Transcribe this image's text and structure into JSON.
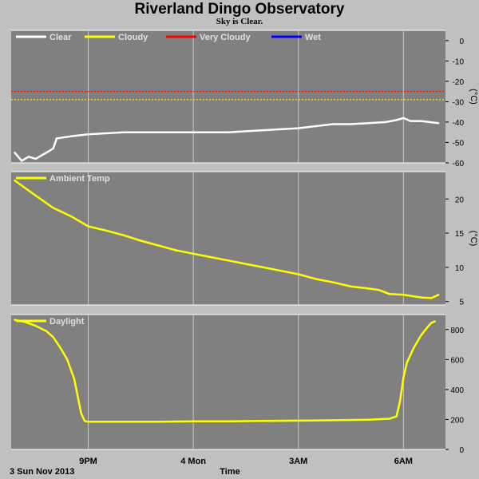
{
  "title": "Riverland Dingo Observatory",
  "subtitle": "Sky is Clear.",
  "date_label": "3 Sun Nov 2013",
  "time_label": "Time",
  "colors": {
    "background": "#c0c0c0",
    "panel": "#808080",
    "grid": "#c8c8c8",
    "clear": "#ffffff",
    "cloudy": "#ffff00",
    "very_cloudy": "#ff0000",
    "wet": "#0000ff",
    "trace": "#ffff00"
  },
  "chart_data": [
    {
      "type": "line",
      "legend": [
        "Clear",
        "Cloudy",
        "Very Cloudy",
        "Wet"
      ],
      "ylabel": "(°C)",
      "ylim": [
        -60,
        5
      ],
      "yticks": [
        0,
        -10,
        -20,
        -30,
        -40,
        -50,
        -60
      ],
      "xlim": [
        18.8,
        31.2
      ],
      "xticks": [
        {
          "x": 21,
          "label": "9PM"
        },
        {
          "x": 24,
          "label": "4 Mon"
        },
        {
          "x": 27,
          "label": "3AM"
        },
        {
          "x": 30,
          "label": "6AM"
        }
      ],
      "thresholds": [
        {
          "name": "Very Cloudy",
          "value": -25
        },
        {
          "name": "Cloudy",
          "value": -29
        }
      ],
      "series": [
        {
          "name": "Clear",
          "x": [
            18.9,
            19.1,
            19.3,
            19.5,
            19.7,
            19.9,
            20.0,
            20.1,
            20.5,
            21.0,
            21.5,
            22.0,
            22.5,
            23.0,
            23.5,
            24.0,
            24.5,
            25.0,
            25.5,
            26.0,
            26.5,
            27.0,
            27.5,
            28.0,
            28.5,
            29.0,
            29.5,
            29.8,
            30.0,
            30.2,
            30.5,
            31.0
          ],
          "y": [
            -55,
            -59,
            -57,
            -58,
            -56,
            -54,
            -53,
            -48,
            -47,
            -46,
            -45.5,
            -45,
            -45,
            -45,
            -45,
            -45,
            -45,
            -45,
            -44.5,
            -44,
            -43.5,
            -43,
            -42,
            -41,
            -41,
            -40.5,
            -40,
            -39,
            -38,
            -39.5,
            -39.5,
            -40.5
          ]
        }
      ]
    },
    {
      "type": "line",
      "legend": [
        "Ambient Temp"
      ],
      "ylabel": "(°C)",
      "ylim": [
        4.5,
        24
      ],
      "yticks": [
        20,
        15,
        10,
        5
      ],
      "xlim": [
        18.8,
        31.2
      ],
      "xticks": [
        {
          "x": 21,
          "label": "9PM"
        },
        {
          "x": 24,
          "label": "4 Mon"
        },
        {
          "x": 27,
          "label": "3AM"
        },
        {
          "x": 30,
          "label": "6AM"
        }
      ],
      "series": [
        {
          "name": "Ambient Temp",
          "x": [
            18.9,
            19.5,
            20.0,
            20.5,
            21.0,
            21.5,
            22.0,
            22.5,
            23.0,
            23.5,
            24.0,
            24.5,
            25.0,
            25.5,
            26.0,
            26.5,
            27.0,
            27.5,
            28.0,
            28.5,
            29.0,
            29.3,
            29.6,
            30.0,
            30.5,
            30.8,
            31.0
          ],
          "y": [
            22.7,
            20.5,
            18.7,
            17.5,
            16.0,
            15.4,
            14.7,
            13.9,
            13.2,
            12.5,
            12.0,
            11.5,
            11.0,
            10.5,
            10.0,
            9.5,
            9.0,
            8.3,
            7.8,
            7.2,
            6.9,
            6.7,
            6.1,
            6.0,
            5.6,
            5.5,
            6.0
          ]
        }
      ]
    },
    {
      "type": "line",
      "legend": [
        "Daylight"
      ],
      "ylabel": "",
      "ylim": [
        0,
        900
      ],
      "yticks": [
        800,
        600,
        400,
        200,
        0
      ],
      "xlim": [
        18.8,
        31.2
      ],
      "xticks": [
        {
          "x": 21,
          "label": "9PM"
        },
        {
          "x": 24,
          "label": "4 Mon"
        },
        {
          "x": 27,
          "label": "3AM"
        },
        {
          "x": 30,
          "label": "6AM"
        }
      ],
      "series": [
        {
          "name": "Daylight",
          "x": [
            18.9,
            19.2,
            19.5,
            19.8,
            20.0,
            20.2,
            20.4,
            20.6,
            20.8,
            20.9,
            21.0,
            22.0,
            23.0,
            24.0,
            25.0,
            26.0,
            27.0,
            28.0,
            29.0,
            29.6,
            29.8,
            29.9,
            30.0,
            30.1,
            30.3,
            30.5,
            30.7,
            30.8,
            30.9
          ],
          "y": [
            865,
            850,
            825,
            790,
            750,
            680,
            600,
            470,
            240,
            190,
            185,
            185,
            185,
            188,
            188,
            190,
            192,
            195,
            198,
            205,
            220,
            320,
            480,
            580,
            680,
            760,
            820,
            845,
            855
          ]
        }
      ]
    }
  ]
}
